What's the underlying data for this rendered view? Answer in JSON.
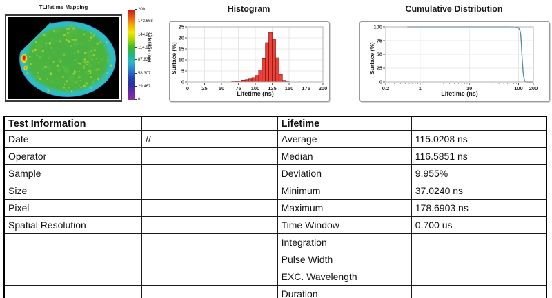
{
  "chart_data": [
    {
      "type": "heatmap",
      "title": "TLifetime Mapping",
      "description": "Circular silicon-wafer lifetime map on black background; bulk ~110-120 ns (green) with yellow speckles, cyan ~90 ns rim, flat notch on upper-left edge, and a small ~200 ns red hotspot with orange-yellow halo on the left edge",
      "colorbar_label": "Lifetime (ns)",
      "colorbar_ticks": [
        "200",
        "173.668",
        "144.201",
        "114.107",
        "87.835",
        "58.307",
        "29.467",
        "0"
      ],
      "colorbar_max": 200,
      "colorbar_colors": [
        "#c81414",
        "#e85a10",
        "#f5a800",
        "#f2ea00",
        "#a6d800",
        "#3cb828",
        "#1fb87e",
        "#28b8c8",
        "#2b7fd0",
        "#2346b4",
        "#2e2ea0",
        "#6a28a8",
        "#8c2ea0"
      ],
      "wafer_colors": {
        "center": "#46b243",
        "mid": "#4bb33f",
        "speckle": "#c2dc2a",
        "rim_cyan": "#2fbdc4",
        "edge_blue": "#2b6fd0",
        "hotspot_red": "#e01818",
        "hotspot_orange": "#f08000",
        "hotspot_yellow": "#f0e000"
      }
    },
    {
      "type": "bar",
      "title": "Histogram",
      "xlabel": "Lifetime (ns)",
      "ylabel": "Surface (%)",
      "xlim": [
        0,
        200
      ],
      "ylim": [
        0,
        25
      ],
      "xticks": [
        0,
        25,
        50,
        75,
        100,
        125,
        150,
        175,
        200
      ],
      "yticks": [
        0,
        5,
        10,
        15,
        20,
        25
      ],
      "bin_width": 5,
      "bin_left_edges": [
        65,
        70,
        75,
        80,
        85,
        90,
        95,
        100,
        105,
        110,
        115,
        120,
        125,
        130,
        135,
        140,
        145
      ],
      "values": [
        0.15,
        0.3,
        0.5,
        0.8,
        1.0,
        1.3,
        1.9,
        2.9,
        5.5,
        10.5,
        17.8,
        22.5,
        19.4,
        10.9,
        3.4,
        0.7,
        0.15
      ],
      "bar_color": "#e8423a",
      "bar_edge": "#8f1710",
      "grid": true,
      "legend": "none"
    },
    {
      "type": "line",
      "title": "Cumulative Distribution",
      "xlabel": "Lifetime (ns)",
      "ylabel": "Surface (%)",
      "xscale": "log",
      "xlim": [
        0.2,
        200
      ],
      "ylim": [
        0,
        100
      ],
      "xticks": [
        0.2,
        1,
        10,
        100,
        200
      ],
      "yticks": [
        0,
        25,
        50,
        75,
        100
      ],
      "points": [
        [
          0.55,
          100
        ],
        [
          1,
          100
        ],
        [
          3,
          100
        ],
        [
          10,
          100
        ],
        [
          30,
          100
        ],
        [
          60,
          100
        ],
        [
          80,
          99.9
        ],
        [
          90,
          99.6
        ],
        [
          95,
          99.2
        ],
        [
          100,
          98.3
        ],
        [
          105,
          95.5
        ],
        [
          110,
          88
        ],
        [
          113,
          75
        ],
        [
          115,
          62
        ],
        [
          117,
          50
        ],
        [
          120,
          35
        ],
        [
          123,
          22
        ],
        [
          125,
          15
        ],
        [
          128,
          8
        ],
        [
          130,
          5
        ],
        [
          133,
          2.5
        ],
        [
          135,
          1.4
        ],
        [
          138,
          0.6
        ],
        [
          140,
          0.3
        ],
        [
          145,
          0.05
        ],
        [
          150,
          0
        ],
        [
          200,
          0
        ]
      ],
      "line_color": "#5c8ca0",
      "grid": true,
      "legend": "none"
    }
  ],
  "table": {
    "info_header": "Test Information",
    "stats_header": "Lifetime",
    "rows": [
      {
        "info": "Date",
        "info_value": "//",
        "stat": "Average",
        "stat_value": "115.0208 ns"
      },
      {
        "info": "Operator",
        "info_value": "",
        "stat": "Median",
        "stat_value": "116.5851 ns"
      },
      {
        "info": "Sample",
        "info_value": "",
        "stat": "Deviation",
        "stat_value": "9.955%"
      },
      {
        "info": "Size",
        "info_value": "",
        "stat": "Minimum",
        "stat_value": "37.0240 ns"
      },
      {
        "info": "Pixel",
        "info_value": "",
        "stat": "Maximum",
        "stat_value": "178.6903 ns"
      },
      {
        "info": "Spatial Resolution",
        "info_value": "",
        "stat": "Time Window",
        "stat_value": "0.700 us"
      },
      {
        "info": "",
        "info_value": "",
        "stat": "Integration",
        "stat_value": ""
      },
      {
        "info": "",
        "info_value": "",
        "stat": "Pulse Width",
        "stat_value": ""
      },
      {
        "info": "",
        "info_value": "",
        "stat": "EXC. Wavelength",
        "stat_value": ""
      },
      {
        "info": "",
        "info_value": "",
        "stat": "Duration",
        "stat_value": ""
      }
    ]
  }
}
